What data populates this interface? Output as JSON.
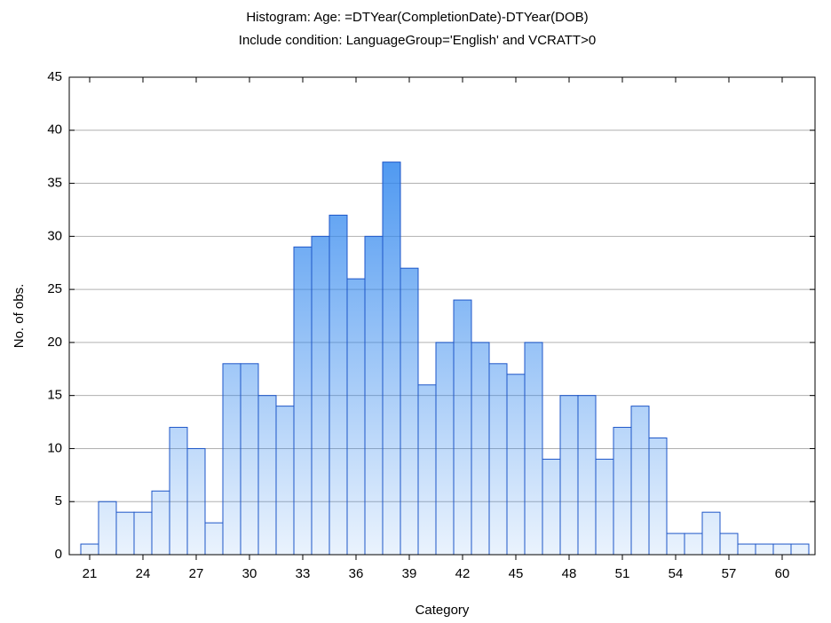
{
  "chart_data": {
    "type": "histogram",
    "title": "Histogram: Age: =DTYear(CompletionDate)-DTYear(DOB)",
    "subtitle": "Include condition: LanguageGroup='English' and VCRATT>0",
    "x_label": "Category",
    "y_label": "No. of obs.",
    "bins": [
      20.5,
      21.5,
      22.5,
      23.5,
      24.5,
      25.5,
      26.5,
      27.5,
      28.5,
      29.5,
      30.5,
      31.5,
      32.5,
      33.5,
      34.5,
      35.5,
      36.5,
      37.5,
      38.5,
      39.5,
      40.5,
      41.5,
      42.5,
      43.5,
      44.5,
      45.5,
      46.5,
      47.5,
      48.5,
      49.5,
      50.5,
      51.5,
      52.5,
      53.5,
      54.5,
      55.5,
      56.5,
      57.5,
      58.5,
      59.5,
      60.5,
      61.5
    ],
    "values": [
      1,
      5,
      4,
      4,
      6,
      12,
      10,
      3,
      18,
      18,
      15,
      14,
      29,
      30,
      32,
      26,
      30,
      37,
      27,
      16,
      20,
      24,
      20,
      18,
      17,
      20,
      9,
      15,
      15,
      9,
      12,
      14,
      11,
      2,
      2,
      4,
      2,
      1,
      1,
      1,
      1
    ],
    "color": "#2f86ee",
    "edge_color": "#1d56c8",
    "xlim": [
      19.85,
      61.85
    ],
    "xticks": [
      21,
      24,
      27,
      30,
      33,
      36,
      39,
      42,
      45,
      48,
      51,
      54,
      57,
      60
    ],
    "ylim": [
      0,
      45
    ],
    "yticks": [
      0,
      5,
      10,
      15,
      20,
      25,
      30,
      35,
      40,
      45
    ],
    "grid": true
  }
}
